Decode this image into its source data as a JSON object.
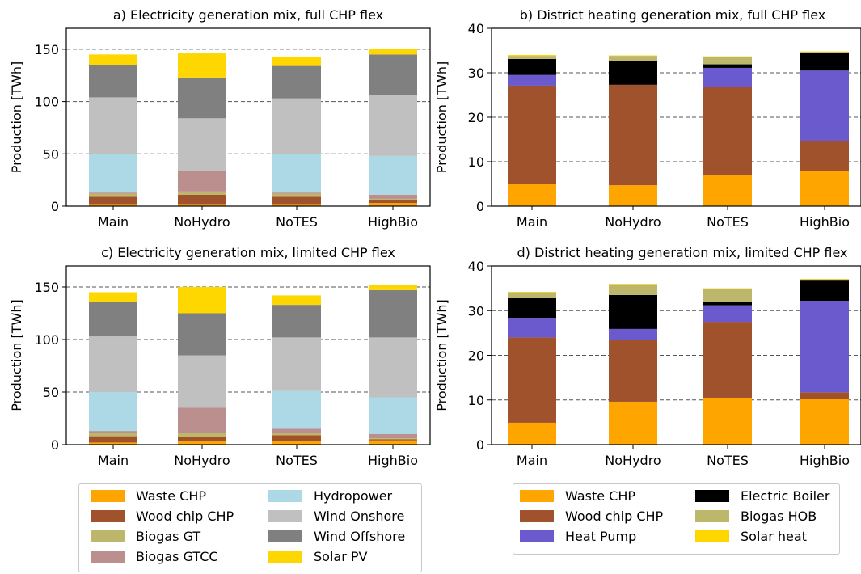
{
  "chart_data": [
    {
      "type": "bar",
      "stacked": true,
      "title": "a) Electricity generation mix, full CHP flex",
      "ylabel": "Production [TWh]",
      "ylim": [
        0,
        170
      ],
      "yticks": [
        0,
        50,
        100,
        150
      ],
      "grid": "horizontal-dashed",
      "categories": [
        "Main",
        "NoHydro",
        "NoTES",
        "HighBio"
      ],
      "series": [
        {
          "name": "Waste CHP",
          "color": "#ffa500",
          "values": [
            2,
            2,
            2,
            3
          ]
        },
        {
          "name": "Wood chip CHP",
          "color": "#a0522d",
          "values": [
            7,
            9,
            7,
            3
          ]
        },
        {
          "name": "Biogas GT",
          "color": "#bdb76b",
          "values": [
            3,
            3,
            3,
            1
          ]
        },
        {
          "name": "Biogas GTCC",
          "color": "#bc8f8f",
          "values": [
            1,
            20,
            1,
            4
          ]
        },
        {
          "name": "Hydropower",
          "color": "#add8e6",
          "values": [
            37,
            0,
            37,
            37
          ]
        },
        {
          "name": "Wind Onshore",
          "color": "#c0c0c0",
          "values": [
            54,
            50,
            53,
            58
          ]
        },
        {
          "name": "Wind Offshore",
          "color": "#808080",
          "values": [
            31,
            39,
            31,
            39
          ]
        },
        {
          "name": "Solar PV",
          "color": "#ffd700",
          "values": [
            10,
            23,
            9,
            5
          ]
        }
      ]
    },
    {
      "type": "bar",
      "stacked": true,
      "title": "b) District heating generation mix, full CHP flex",
      "ylabel": "Production [TWh]",
      "ylim": [
        0,
        40
      ],
      "yticks": [
        0,
        10,
        20,
        30,
        40
      ],
      "grid": "horizontal-dashed",
      "categories": [
        "Main",
        "NoHydro",
        "NoTES",
        "HighBio"
      ],
      "series": [
        {
          "name": "Waste CHP",
          "color": "#ffa500",
          "values": [
            4.9,
            4.7,
            6.9,
            8.0
          ]
        },
        {
          "name": "Wood chip CHP",
          "color": "#a0522d",
          "values": [
            22.2,
            22.6,
            20.0,
            6.7
          ]
        },
        {
          "name": "Heat Pump",
          "color": "#6a5acd",
          "values": [
            2.4,
            0,
            4.2,
            15.8
          ]
        },
        {
          "name": "Electric Boiler",
          "color": "#000000",
          "values": [
            3.6,
            5.4,
            0.8,
            4.0
          ]
        },
        {
          "name": "Biogas HOB",
          "color": "#bdb76b",
          "values": [
            0.7,
            1.1,
            1.7,
            0.2
          ]
        },
        {
          "name": "Solar heat",
          "color": "#ffd700",
          "values": [
            0.2,
            0.1,
            0.1,
            0.1
          ]
        }
      ]
    },
    {
      "type": "bar",
      "stacked": true,
      "title": "c) Electricity generation mix, limited CHP flex",
      "ylabel": "Production [TWh]",
      "ylim": [
        0,
        170
      ],
      "yticks": [
        0,
        50,
        100,
        150
      ],
      "grid": "horizontal-dashed",
      "categories": [
        "Main",
        "NoHydro",
        "NoTES",
        "HighBio"
      ],
      "series": [
        {
          "name": "Waste CHP",
          "color": "#ffa500",
          "values": [
            2,
            3,
            3,
            4
          ]
        },
        {
          "name": "Wood chip CHP",
          "color": "#a0522d",
          "values": [
            6,
            4,
            6,
            1
          ]
        },
        {
          "name": "Biogas GT",
          "color": "#bdb76b",
          "values": [
            3,
            4,
            2,
            1
          ]
        },
        {
          "name": "Biogas GTCC",
          "color": "#bc8f8f",
          "values": [
            2,
            24,
            4,
            4
          ]
        },
        {
          "name": "Hydropower",
          "color": "#add8e6",
          "values": [
            37,
            0,
            36,
            35
          ]
        },
        {
          "name": "Wind Onshore",
          "color": "#c0c0c0",
          "values": [
            53,
            50,
            51,
            57
          ]
        },
        {
          "name": "Wind Offshore",
          "color": "#808080",
          "values": [
            33,
            40,
            31,
            45
          ]
        },
        {
          "name": "Solar PV",
          "color": "#ffd700",
          "values": [
            9,
            25,
            9,
            5
          ]
        }
      ]
    },
    {
      "type": "bar",
      "stacked": true,
      "title": "d) District heating generation mix, limited CHP flex",
      "ylabel": "Production [TWh]",
      "ylim": [
        0,
        40
      ],
      "yticks": [
        0,
        10,
        20,
        30,
        40
      ],
      "grid": "horizontal-dashed",
      "categories": [
        "Main",
        "NoHydro",
        "NoTES",
        "HighBio"
      ],
      "series": [
        {
          "name": "Waste CHP",
          "color": "#ffa500",
          "values": [
            4.9,
            9.6,
            10.5,
            10.2
          ]
        },
        {
          "name": "Wood chip CHP",
          "color": "#a0522d",
          "values": [
            19.1,
            13.9,
            17.0,
            1.5
          ]
        },
        {
          "name": "Heat Pump",
          "color": "#6a5acd",
          "values": [
            4.4,
            2.4,
            3.7,
            20.5
          ]
        },
        {
          "name": "Electric Boiler",
          "color": "#000000",
          "values": [
            4.5,
            7.6,
            0.8,
            4.7
          ]
        },
        {
          "name": "Biogas HOB",
          "color": "#bdb76b",
          "values": [
            1.2,
            2.4,
            2.8,
            0.1
          ]
        },
        {
          "name": "Solar heat",
          "color": "#ffd700",
          "values": [
            0.1,
            0.1,
            0.2,
            0.1
          ]
        }
      ]
    }
  ],
  "legends": {
    "electricity": [
      {
        "label": "Waste CHP",
        "color": "#ffa500"
      },
      {
        "label": "Wood chip CHP",
        "color": "#a0522d"
      },
      {
        "label": "Biogas GT",
        "color": "#bdb76b"
      },
      {
        "label": "Biogas GTCC",
        "color": "#bc8f8f"
      },
      {
        "label": "Hydropower",
        "color": "#add8e6"
      },
      {
        "label": "Wind Onshore",
        "color": "#c0c0c0"
      },
      {
        "label": "Wind Offshore",
        "color": "#808080"
      },
      {
        "label": "Solar PV",
        "color": "#ffd700"
      }
    ],
    "heating": [
      {
        "label": "Waste CHP",
        "color": "#ffa500"
      },
      {
        "label": "Wood chip CHP",
        "color": "#a0522d"
      },
      {
        "label": "Heat Pump",
        "color": "#6a5acd"
      },
      {
        "label": "Electric Boiler",
        "color": "#000000"
      },
      {
        "label": "Biogas HOB",
        "color": "#bdb76b"
      },
      {
        "label": "Solar heat",
        "color": "#ffd700"
      }
    ]
  }
}
